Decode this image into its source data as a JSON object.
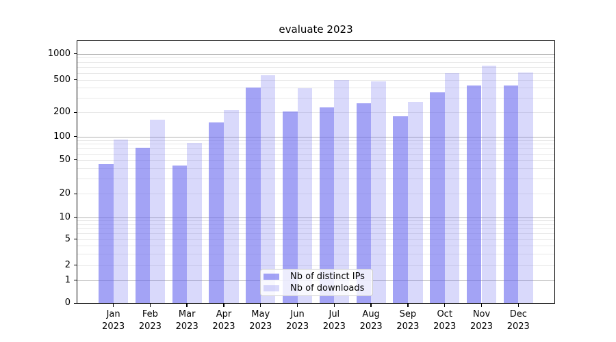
{
  "chart_data": {
    "type": "bar",
    "title": "evaluate 2023",
    "categories": [
      "Jan 2023",
      "Feb 2023",
      "Mar 2023",
      "Apr 2023",
      "May 2023",
      "Jun 2023",
      "Jul 2023",
      "Aug 2023",
      "Sep 2023",
      "Oct 2023",
      "Nov 2023",
      "Dec 2023"
    ],
    "x_tick_months": [
      "Jan",
      "Feb",
      "Mar",
      "Apr",
      "May",
      "Jun",
      "Jul",
      "Aug",
      "Sep",
      "Oct",
      "Nov",
      "Dec"
    ],
    "x_tick_year": "2023",
    "series": [
      {
        "name": "Nb of distinct IPs",
        "color": "#6666ee",
        "alpha": 0.6,
        "values": [
          44,
          71,
          43,
          148,
          400,
          203,
          230,
          255,
          178,
          350,
          425,
          425
        ]
      },
      {
        "name": "Nb of downloads",
        "color": "#6666ee",
        "alpha": 0.25,
        "values": [
          92,
          160,
          82,
          212,
          560,
          390,
          500,
          475,
          265,
          590,
          725,
          605
        ]
      }
    ],
    "xlabel": "",
    "ylabel": "",
    "yscale": "symlog",
    "yticks": [
      0,
      1,
      2,
      5,
      10,
      20,
      50,
      100,
      200,
      500,
      1000
    ],
    "ylim": [
      0,
      1430
    ],
    "grid": true,
    "legend_position": "lower center"
  },
  "style": {
    "background": "#ffffff",
    "spine_color": "#000000",
    "text_color": "#000000",
    "major_grid_color": "#b0b0b0",
    "minor_grid_color": "#e8e8e8",
    "legend_border_color": "#cccccc"
  }
}
